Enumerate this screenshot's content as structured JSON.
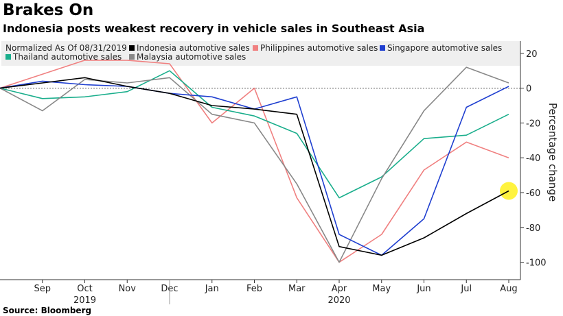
{
  "header": {
    "title": "Brakes On",
    "subtitle": "Indonesia posts weakest recovery in vehicle sales in Southeast Asia",
    "source": "Source: Bloomberg"
  },
  "chart_data": {
    "type": "line",
    "normalization_note": "Normalized As Of 08/31/2019",
    "ylabel": "Percentage change",
    "ylim": [
      -110,
      27
    ],
    "yticks": [
      20,
      0,
      -20,
      -40,
      -60,
      -80,
      -100
    ],
    "x": [
      "Aug 2019",
      "Sep 2019",
      "Oct 2019",
      "Nov 2019",
      "Dec 2019",
      "Jan 2020",
      "Feb 2020",
      "Mar 2020",
      "Apr 2020",
      "May 2020",
      "Jun 2020",
      "Jul 2020",
      "Aug 2020"
    ],
    "xtick_labels": [
      "Sep",
      "Oct",
      "Nov",
      "Dec",
      "Jan",
      "Feb",
      "Mar",
      "Apr",
      "May",
      "Jun",
      "Jul",
      "Aug"
    ],
    "year_labels": [
      "2019",
      "2020"
    ],
    "zero_line": true,
    "grid": false,
    "legend_position": "top-left",
    "series": [
      {
        "name": "Indonesia automotive sales",
        "color": "#000000",
        "values": [
          0,
          3,
          6,
          1,
          -3,
          -10,
          -12,
          -15,
          -91,
          -96,
          -86,
          -72,
          -59
        ]
      },
      {
        "name": "Philippines automotive sales",
        "color": "#f08080",
        "values": [
          0,
          8,
          16,
          16,
          14,
          -20,
          0,
          -63,
          -100,
          -84,
          -47,
          -31,
          -40
        ]
      },
      {
        "name": "Singapore automotive sales",
        "color": "#1f3fd0",
        "values": [
          0,
          4,
          2,
          1,
          -3,
          -5,
          -12,
          -5,
          -84,
          -96,
          -75,
          -11,
          1
        ]
      },
      {
        "name": "Thailand automotive sales",
        "color": "#1aae8c",
        "values": [
          0,
          -6,
          -5,
          -2,
          10,
          -11,
          -16,
          -26,
          -63,
          -51,
          -29,
          -27,
          -15
        ]
      },
      {
        "name": "Malaysia automotive sales",
        "color": "#888888",
        "values": [
          0,
          -13,
          5,
          3,
          6,
          -15,
          -20,
          -55,
          -100,
          -52,
          -13,
          12,
          3
        ]
      }
    ],
    "highlight": {
      "series": "Indonesia automotive sales",
      "x": "Aug 2020",
      "color": "#fff22a"
    }
  }
}
